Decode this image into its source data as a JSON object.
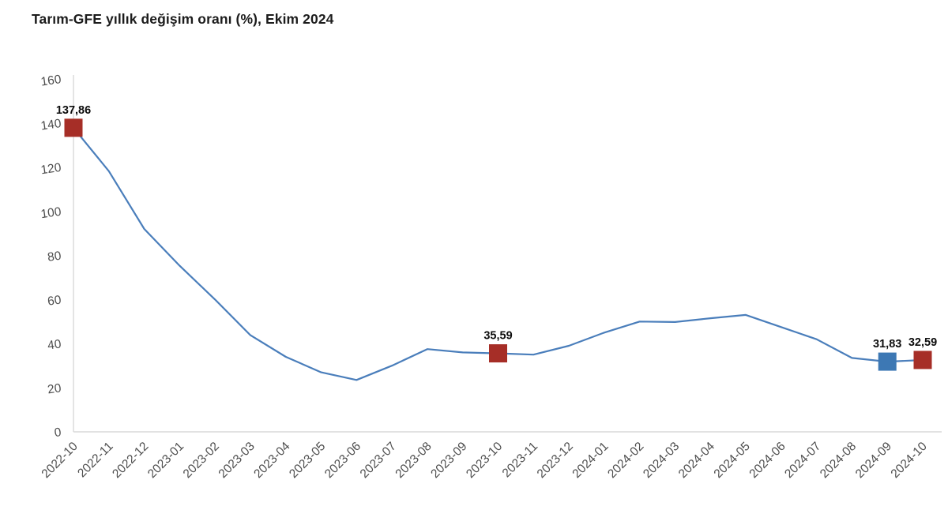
{
  "title": "Tarım-GFE yıllık değişim oranı (%), Ekim 2024",
  "chart_data": {
    "type": "line",
    "title": "Tarım-GFE yıllık değişim oranı (%), Ekim 2024",
    "xlabel": "",
    "ylabel": "",
    "categories": [
      "2022-10",
      "2022-11",
      "2022-12",
      "2023-01",
      "2023-02",
      "2023-03",
      "2023-04",
      "2023-05",
      "2023-06",
      "2023-07",
      "2023-08",
      "2023-09",
      "2023-10",
      "2023-11",
      "2023-12",
      "2024-01",
      "2024-02",
      "2024-03",
      "2024-04",
      "2024-05",
      "2024-06",
      "2024-07",
      "2024-08",
      "2024-09",
      "2024-10"
    ],
    "series": [
      {
        "name": "Tarım-GFE yıllık değişim oranı (%)",
        "values": [
          137.86,
          118.2,
          92.0,
          75.3,
          60.0,
          43.8,
          34.0,
          27.0,
          23.5,
          30.0,
          37.5,
          36.0,
          35.59,
          35.0,
          39.0,
          45.0,
          50.0,
          49.8,
          51.5,
          53.0,
          47.5,
          42.0,
          33.5,
          31.83,
          32.59
        ]
      }
    ],
    "ylim": [
      0,
      160
    ],
    "ytick_step": 20,
    "grid": false,
    "legend_position": "none",
    "annotated_points": [
      {
        "category": "2022-10",
        "index": 0,
        "label": "137,86",
        "marker_color": "#a62e27"
      },
      {
        "category": "2023-10",
        "index": 12,
        "label": "35,59",
        "marker_color": "#a62e27"
      },
      {
        "category": "2024-09",
        "index": 23,
        "label": "31,83",
        "marker_color": "#3d78b4"
      },
      {
        "category": "2024-10",
        "index": 24,
        "label": "32,59",
        "marker_color": "#a62e27"
      }
    ],
    "colors": {
      "line": "#4a7ebb",
      "axis": "#d9d9d9",
      "tick_label": "#4d4d4d",
      "data_label": "#0d0d0d",
      "background": "#ffffff"
    }
  }
}
